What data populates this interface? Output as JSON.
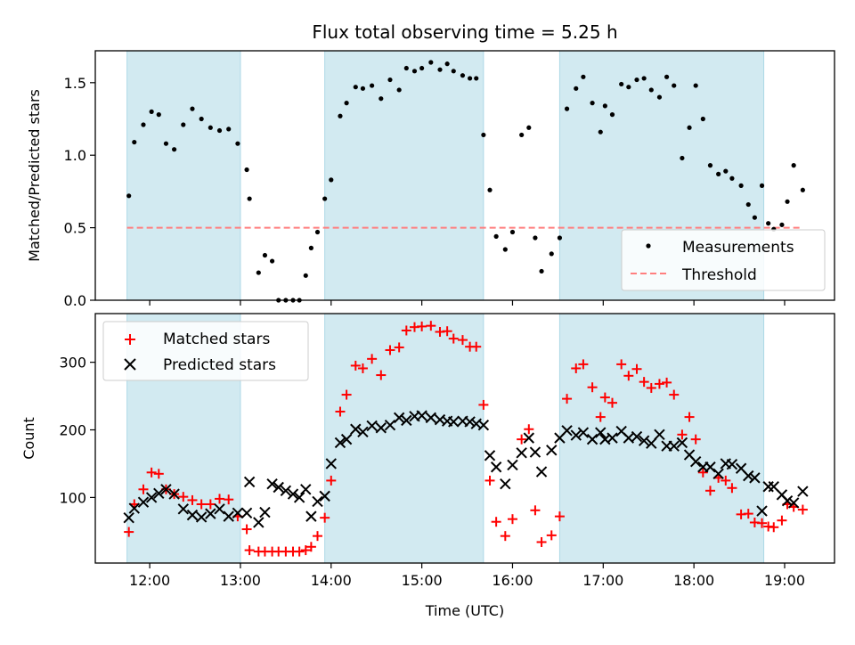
{
  "title": "Flux total observing time = 5.25 h",
  "colors": {
    "band": "#add8e6",
    "measurement": "#000000",
    "threshold": "#ff7f7f",
    "matched": "#ff0000",
    "predicted": "#000000"
  },
  "chart_data": [
    {
      "type": "scatter",
      "ylabel": "Matched/Predicted stars",
      "xlabel": "",
      "xlim": [
        11.4,
        19.55
      ],
      "ylim": [
        0,
        1.72
      ],
      "x_ticks": [
        12,
        13,
        14,
        15,
        16,
        17,
        18,
        19
      ],
      "x_tick_labels": [
        "12:00",
        "13:00",
        "14:00",
        "15:00",
        "16:00",
        "17:00",
        "18:00",
        "19:00"
      ],
      "y_ticks": [
        0,
        0.5,
        1.0,
        1.5
      ],
      "y_tick_labels": [
        "0.0",
        "0.5",
        "1.0",
        "1.5"
      ],
      "observing_windows": [
        [
          11.75,
          13.0
        ],
        [
          13.93,
          15.68
        ],
        [
          16.52,
          18.77
        ]
      ],
      "threshold": {
        "name": "Threshold",
        "value": 0.5,
        "x_range": [
          11.75,
          19.2
        ]
      },
      "legend": {
        "position": "lower-right",
        "entries": [
          "Measurements",
          "Threshold"
        ]
      },
      "series": [
        {
          "name": "Measurements",
          "marker": "dot",
          "x": [
            11.77,
            11.83,
            11.93,
            12.02,
            12.1,
            12.18,
            12.27,
            12.37,
            12.47,
            12.57,
            12.67,
            12.77,
            12.87,
            12.97,
            13.07,
            13.1,
            13.2,
            13.27,
            13.35,
            13.42,
            13.5,
            13.58,
            13.65,
            13.72,
            13.78,
            13.85,
            13.93,
            14.0,
            14.1,
            14.17,
            14.27,
            14.35,
            14.45,
            14.55,
            14.65,
            14.75,
            14.83,
            14.92,
            15.0,
            15.1,
            15.2,
            15.28,
            15.35,
            15.45,
            15.53,
            15.6,
            15.68,
            15.75,
            15.82,
            15.92,
            16.0,
            16.1,
            16.18,
            16.25,
            16.32,
            16.43,
            16.52,
            16.6,
            16.7,
            16.78,
            16.88,
            16.97,
            17.02,
            17.1,
            17.2,
            17.28,
            17.37,
            17.45,
            17.53,
            17.62,
            17.7,
            17.78,
            17.87,
            17.95,
            18.02,
            18.1,
            18.18,
            18.27,
            18.35,
            18.42,
            18.52,
            18.6,
            18.67,
            18.75,
            18.82,
            18.88,
            18.97,
            19.03,
            19.1,
            19.2
          ],
          "y": [
            0.72,
            1.09,
            1.21,
            1.3,
            1.28,
            1.08,
            1.04,
            1.21,
            1.32,
            1.25,
            1.19,
            1.17,
            1.18,
            1.08,
            0.9,
            0.7,
            0.19,
            0.31,
            0.27,
            0.0,
            0.0,
            0.0,
            0.0,
            0.17,
            0.36,
            0.47,
            0.7,
            0.83,
            1.27,
            1.36,
            1.47,
            1.46,
            1.48,
            1.39,
            1.52,
            1.45,
            1.6,
            1.58,
            1.6,
            1.64,
            1.59,
            1.63,
            1.58,
            1.55,
            1.53,
            1.53,
            1.14,
            0.76,
            0.44,
            0.35,
            0.47,
            1.14,
            1.19,
            0.43,
            0.2,
            0.32,
            0.43,
            1.32,
            1.46,
            1.54,
            1.36,
            1.16,
            1.34,
            1.28,
            1.49,
            1.47,
            1.52,
            1.53,
            1.45,
            1.4,
            1.54,
            1.48,
            0.98,
            1.19,
            1.48,
            1.25,
            0.93,
            0.87,
            0.89,
            0.84,
            0.79,
            0.66,
            0.57,
            0.79,
            0.53,
            0.49,
            0.52,
            0.68,
            0.93,
            0.76
          ]
        }
      ]
    },
    {
      "type": "scatter",
      "ylabel": "Count",
      "xlabel": "Time (UTC)",
      "xlim": [
        11.4,
        19.55
      ],
      "ylim": [
        3,
        372
      ],
      "x_ticks": [
        12,
        13,
        14,
        15,
        16,
        17,
        18,
        19
      ],
      "x_tick_labels": [
        "12:00",
        "13:00",
        "14:00",
        "15:00",
        "16:00",
        "17:00",
        "18:00",
        "19:00"
      ],
      "y_ticks": [
        100,
        200,
        300
      ],
      "y_tick_labels": [
        "100",
        "200",
        "300"
      ],
      "observing_windows": [
        [
          11.75,
          13.0
        ],
        [
          13.93,
          15.68
        ],
        [
          16.52,
          18.77
        ]
      ],
      "legend": {
        "position": "upper-left",
        "entries": [
          "Matched stars",
          "Predicted stars"
        ]
      },
      "series": [
        {
          "name": "Matched stars",
          "marker": "plus",
          "x": [
            11.77,
            11.83,
            11.93,
            12.02,
            12.1,
            12.18,
            12.27,
            12.37,
            12.47,
            12.57,
            12.67,
            12.77,
            12.87,
            12.97,
            13.07,
            13.1,
            13.2,
            13.27,
            13.35,
            13.42,
            13.5,
            13.58,
            13.65,
            13.72,
            13.78,
            13.85,
            13.93,
            14.0,
            14.1,
            14.17,
            14.27,
            14.35,
            14.45,
            14.55,
            14.65,
            14.75,
            14.83,
            14.92,
            15.0,
            15.1,
            15.2,
            15.28,
            15.35,
            15.45,
            15.53,
            15.6,
            15.68,
            15.75,
            15.82,
            15.92,
            16.0,
            16.1,
            16.18,
            16.25,
            16.32,
            16.43,
            16.52,
            16.6,
            16.7,
            16.78,
            16.88,
            16.97,
            17.02,
            17.1,
            17.2,
            17.28,
            17.37,
            17.45,
            17.53,
            17.62,
            17.7,
            17.78,
            17.87,
            17.95,
            18.02,
            18.1,
            18.18,
            18.27,
            18.35,
            18.42,
            18.52,
            18.6,
            18.67,
            18.75,
            18.82,
            18.88,
            18.97,
            19.03,
            19.1,
            19.2
          ],
          "y": [
            49,
            90,
            112,
            137,
            135,
            112,
            105,
            101,
            96,
            90,
            90,
            98,
            97,
            72,
            53,
            22,
            20,
            20,
            20,
            20,
            20,
            20,
            20,
            22,
            27,
            43,
            70,
            125,
            227,
            252,
            295,
            291,
            305,
            281,
            318,
            322,
            347,
            352,
            353,
            354,
            345,
            346,
            335,
            333,
            323,
            323,
            237,
            125,
            64,
            43,
            68,
            186,
            201,
            81,
            34,
            44,
            72,
            246,
            291,
            297,
            263,
            219,
            248,
            240,
            297,
            280,
            290,
            271,
            262,
            268,
            270,
            252,
            193,
            219,
            186,
            137,
            110,
            129,
            125,
            114,
            75,
            76,
            63,
            62,
            57,
            56,
            66,
            90,
            86,
            82
          ]
        },
        {
          "name": "Predicted stars",
          "marker": "x",
          "x": [
            11.77,
            11.83,
            11.93,
            12.02,
            12.1,
            12.18,
            12.27,
            12.37,
            12.47,
            12.57,
            12.67,
            12.77,
            12.87,
            12.97,
            13.07,
            13.1,
            13.2,
            13.27,
            13.35,
            13.42,
            13.5,
            13.58,
            13.65,
            13.72,
            13.78,
            13.85,
            13.93,
            14.0,
            14.1,
            14.17,
            14.27,
            14.35,
            14.45,
            14.55,
            14.65,
            14.75,
            14.83,
            14.92,
            15.0,
            15.1,
            15.2,
            15.28,
            15.35,
            15.45,
            15.53,
            15.6,
            15.68,
            15.75,
            15.82,
            15.92,
            16.0,
            16.1,
            16.18,
            16.25,
            16.32,
            16.43,
            16.52,
            16.6,
            16.7,
            16.78,
            16.88,
            16.97,
            17.02,
            17.1,
            17.2,
            17.28,
            17.37,
            17.45,
            17.53,
            17.62,
            17.7,
            17.78,
            17.87,
            17.95,
            18.02,
            18.1,
            18.18,
            18.27,
            18.35,
            18.42,
            18.52,
            18.6,
            18.67,
            18.75,
            18.82,
            18.88,
            18.97,
            19.03,
            19.1,
            19.2
          ],
          "y": [
            70,
            84,
            93,
            100,
            106,
            112,
            105,
            83,
            74,
            71,
            76,
            83,
            72,
            77,
            77,
            123,
            63,
            78,
            120,
            115,
            110,
            105,
            100,
            112,
            72,
            94,
            102,
            150,
            181,
            186,
            201,
            197,
            206,
            203,
            207,
            218,
            214,
            220,
            221,
            218,
            215,
            213,
            212,
            213,
            212,
            209,
            207,
            162,
            145,
            120,
            148,
            166,
            188,
            167,
            138,
            170,
            188,
            199,
            192,
            196,
            186,
            196,
            186,
            188,
            198,
            188,
            190,
            184,
            180,
            193,
            176,
            176,
            181,
            163,
            153,
            145,
            145,
            135,
            150,
            149,
            143,
            132,
            129,
            80,
            116,
            116,
            104,
            95,
            92,
            109
          ]
        }
      ]
    }
  ]
}
